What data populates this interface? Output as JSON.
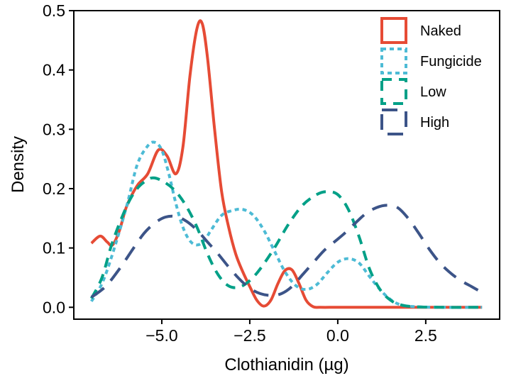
{
  "chart_data": {
    "type": "line",
    "title": "",
    "xlabel": "Clothianidin (µg)",
    "ylabel": "Density",
    "xlim": [
      -7.5,
      4.6
    ],
    "ylim": [
      -0.02,
      0.5
    ],
    "xticks": [
      -5.0,
      -2.5,
      0.0,
      2.5
    ],
    "xtick_labels": [
      "−5.0",
      "−2.5",
      "0.0",
      "2.5"
    ],
    "yticks": [
      0.0,
      0.1,
      0.2,
      0.3,
      0.4,
      0.5
    ],
    "ytick_labels": [
      "0.0",
      "0.1",
      "0.2",
      "0.3",
      "0.4",
      "0.5"
    ],
    "grid": false,
    "legend_position": "top-right",
    "series": [
      {
        "name": "Naked",
        "color": "#E64B35",
        "dash": "solid",
        "points": [
          [
            -7.0,
            0.108
          ],
          [
            -6.75,
            0.12
          ],
          [
            -6.55,
            0.11
          ],
          [
            -6.4,
            0.105
          ],
          [
            -6.2,
            0.13
          ],
          [
            -6.0,
            0.17
          ],
          [
            -5.7,
            0.205
          ],
          [
            -5.4,
            0.225
          ],
          [
            -5.1,
            0.265
          ],
          [
            -4.85,
            0.255
          ],
          [
            -4.6,
            0.225
          ],
          [
            -4.4,
            0.27
          ],
          [
            -4.2,
            0.39
          ],
          [
            -4.0,
            0.47
          ],
          [
            -3.85,
            0.478
          ],
          [
            -3.7,
            0.42
          ],
          [
            -3.5,
            0.3
          ],
          [
            -3.3,
            0.195
          ],
          [
            -3.1,
            0.135
          ],
          [
            -2.9,
            0.09
          ],
          [
            -2.7,
            0.06
          ],
          [
            -2.5,
            0.035
          ],
          [
            -2.3,
            0.012
          ],
          [
            -2.1,
            0.002
          ],
          [
            -1.9,
            0.012
          ],
          [
            -1.7,
            0.04
          ],
          [
            -1.5,
            0.062
          ],
          [
            -1.3,
            0.063
          ],
          [
            -1.1,
            0.04
          ],
          [
            -0.9,
            0.012
          ],
          [
            -0.7,
            0.001
          ],
          [
            -0.5,
            0.0
          ],
          [
            0.0,
            0.0
          ],
          [
            1.0,
            0.0
          ],
          [
            2.0,
            0.0
          ],
          [
            3.0,
            0.0
          ],
          [
            4.1,
            0.0
          ]
        ]
      },
      {
        "name": "Fungicide",
        "color": "#4DBBD5",
        "dash": "dotted",
        "points": [
          [
            -7.0,
            0.01
          ],
          [
            -6.7,
            0.04
          ],
          [
            -6.4,
            0.09
          ],
          [
            -6.0,
            0.17
          ],
          [
            -5.7,
            0.24
          ],
          [
            -5.4,
            0.272
          ],
          [
            -5.2,
            0.278
          ],
          [
            -5.0,
            0.265
          ],
          [
            -4.8,
            0.225
          ],
          [
            -4.6,
            0.175
          ],
          [
            -4.4,
            0.135
          ],
          [
            -4.2,
            0.112
          ],
          [
            -4.0,
            0.105
          ],
          [
            -3.8,
            0.112
          ],
          [
            -3.6,
            0.13
          ],
          [
            -3.3,
            0.155
          ],
          [
            -3.0,
            0.163
          ],
          [
            -2.7,
            0.165
          ],
          [
            -2.4,
            0.155
          ],
          [
            -2.1,
            0.13
          ],
          [
            -1.8,
            0.095
          ],
          [
            -1.5,
            0.06
          ],
          [
            -1.2,
            0.037
          ],
          [
            -0.9,
            0.03
          ],
          [
            -0.6,
            0.038
          ],
          [
            -0.3,
            0.058
          ],
          [
            0.0,
            0.076
          ],
          [
            0.3,
            0.082
          ],
          [
            0.6,
            0.075
          ],
          [
            0.9,
            0.052
          ],
          [
            1.2,
            0.03
          ],
          [
            1.5,
            0.013
          ],
          [
            1.8,
            0.004
          ],
          [
            2.2,
            0.001
          ],
          [
            3.0,
            0.0
          ],
          [
            4.1,
            0.0
          ]
        ]
      },
      {
        "name": "Low",
        "color": "#00A087",
        "dash": "dashed",
        "points": [
          [
            -7.0,
            0.015
          ],
          [
            -6.7,
            0.05
          ],
          [
            -6.4,
            0.11
          ],
          [
            -6.0,
            0.17
          ],
          [
            -5.7,
            0.2
          ],
          [
            -5.4,
            0.215
          ],
          [
            -5.2,
            0.218
          ],
          [
            -4.9,
            0.21
          ],
          [
            -4.6,
            0.195
          ],
          [
            -4.3,
            0.17
          ],
          [
            -4.0,
            0.135
          ],
          [
            -3.7,
            0.09
          ],
          [
            -3.4,
            0.055
          ],
          [
            -3.1,
            0.036
          ],
          [
            -2.8,
            0.034
          ],
          [
            -2.5,
            0.045
          ],
          [
            -2.2,
            0.065
          ],
          [
            -1.8,
            0.1
          ],
          [
            -1.4,
            0.14
          ],
          [
            -1.0,
            0.172
          ],
          [
            -0.6,
            0.19
          ],
          [
            -0.3,
            0.195
          ],
          [
            0.0,
            0.19
          ],
          [
            0.3,
            0.165
          ],
          [
            0.6,
            0.12
          ],
          [
            0.9,
            0.065
          ],
          [
            1.2,
            0.03
          ],
          [
            1.5,
            0.012
          ],
          [
            1.8,
            0.004
          ],
          [
            2.2,
            0.001
          ],
          [
            3.0,
            0.0
          ],
          [
            4.1,
            0.0
          ]
        ]
      },
      {
        "name": "High",
        "color": "#3C5488",
        "dash": "longdash",
        "points": [
          [
            -7.0,
            0.017
          ],
          [
            -6.6,
            0.035
          ],
          [
            -6.2,
            0.065
          ],
          [
            -5.8,
            0.1
          ],
          [
            -5.5,
            0.125
          ],
          [
            -5.2,
            0.142
          ],
          [
            -4.9,
            0.152
          ],
          [
            -4.6,
            0.153
          ],
          [
            -4.3,
            0.145
          ],
          [
            -4.0,
            0.13
          ],
          [
            -3.7,
            0.11
          ],
          [
            -3.4,
            0.09
          ],
          [
            -3.1,
            0.068
          ],
          [
            -2.8,
            0.048
          ],
          [
            -2.5,
            0.032
          ],
          [
            -2.2,
            0.023
          ],
          [
            -1.9,
            0.02
          ],
          [
            -1.6,
            0.023
          ],
          [
            -1.3,
            0.035
          ],
          [
            -1.0,
            0.055
          ],
          [
            -0.7,
            0.075
          ],
          [
            -0.4,
            0.095
          ],
          [
            -0.1,
            0.11
          ],
          [
            0.2,
            0.125
          ],
          [
            0.5,
            0.142
          ],
          [
            0.8,
            0.158
          ],
          [
            1.1,
            0.168
          ],
          [
            1.4,
            0.172
          ],
          [
            1.7,
            0.168
          ],
          [
            2.0,
            0.15
          ],
          [
            2.3,
            0.125
          ],
          [
            2.6,
            0.098
          ],
          [
            2.9,
            0.075
          ],
          [
            3.2,
            0.058
          ],
          [
            3.5,
            0.045
          ],
          [
            3.8,
            0.035
          ],
          [
            4.1,
            0.025
          ]
        ]
      }
    ]
  }
}
